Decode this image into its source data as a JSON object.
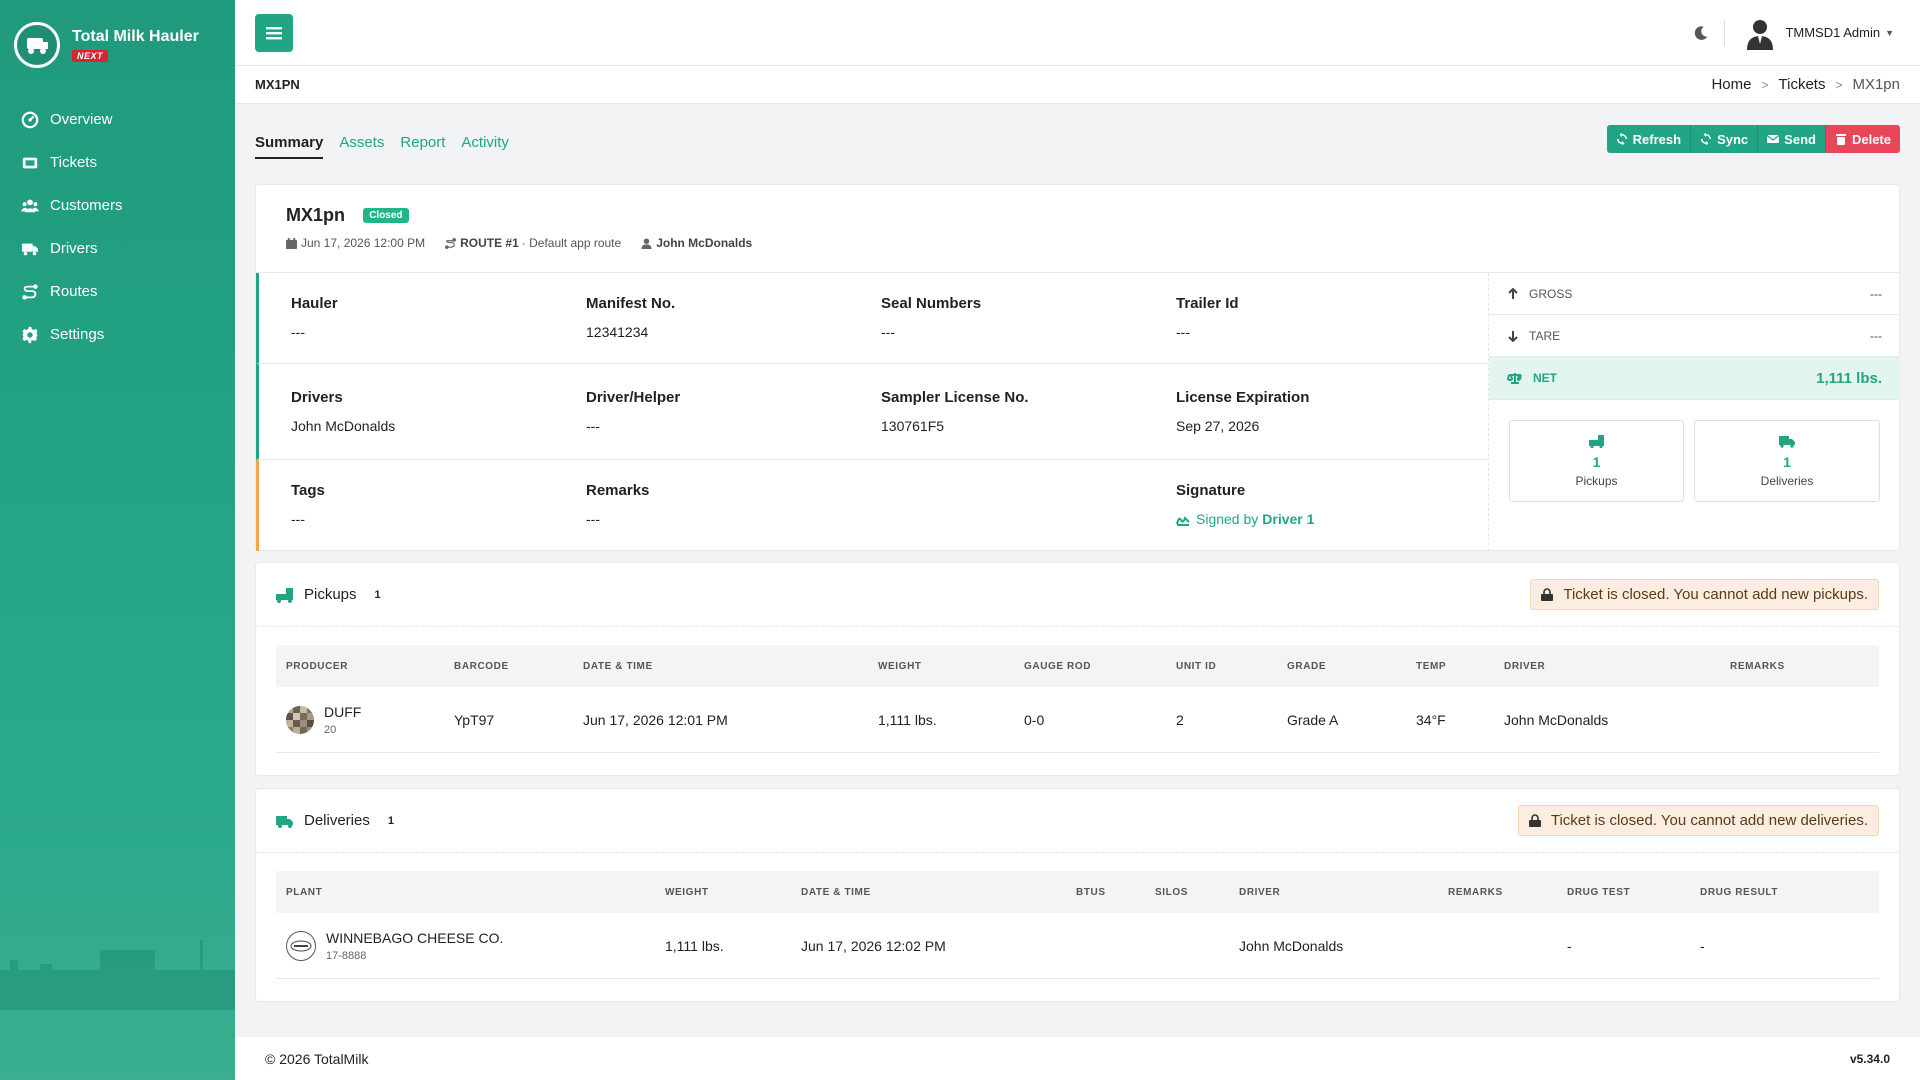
{
  "app": {
    "brand_title": "Total Milk Hauler",
    "brand_badge": "NEXT"
  },
  "sidebar": {
    "items": [
      {
        "label": "Overview",
        "icon": "dashboard-icon"
      },
      {
        "label": "Tickets",
        "icon": "ticket-icon"
      },
      {
        "label": "Customers",
        "icon": "users-icon"
      },
      {
        "label": "Drivers",
        "icon": "truck-icon"
      },
      {
        "label": "Routes",
        "icon": "route-icon"
      },
      {
        "label": "Settings",
        "icon": "gear-icon"
      }
    ]
  },
  "header": {
    "user_name": "TMMSD1 Admin"
  },
  "subheader": {
    "title": "MX1PN",
    "breadcrumbs": [
      "Home",
      "Tickets",
      "MX1pn"
    ]
  },
  "tabs": [
    "Summary",
    "Assets",
    "Report",
    "Activity"
  ],
  "actions": {
    "refresh": "Refresh",
    "sync": "Sync",
    "send": "Send",
    "delete": "Delete"
  },
  "ticket": {
    "id": "MX1pn",
    "status": "Closed",
    "datetime": "Jun 17, 2026 12:00 PM",
    "route_code": "ROUTE #1",
    "route_desc": "· Default app route",
    "driver": "John McDonalds",
    "fields": {
      "hauler_label": "Hauler",
      "hauler": "---",
      "manifest_label": "Manifest No.",
      "manifest": "12341234",
      "seal_label": "Seal Numbers",
      "seal": "---",
      "trailer_label": "Trailer Id",
      "trailer": "---",
      "drivers_label": "Drivers",
      "drivers": "John McDonalds",
      "helper_label": "Driver/Helper",
      "helper": "---",
      "sampler_label": "Sampler License No.",
      "sampler": "130761F5",
      "license_exp_label": "License Expiration",
      "license_exp": "Sep 27, 2026",
      "tags_label": "Tags",
      "tags": "---",
      "remarks_label": "Remarks",
      "remarks": "---",
      "signature_label": "Signature",
      "signature_prefix": "Signed by",
      "signature_who": "Driver 1"
    },
    "weights": {
      "gross_label": "GROSS",
      "gross": "---",
      "tare_label": "TARE",
      "tare": "---",
      "net_label": "NET",
      "net": "1,111 lbs."
    },
    "counts": {
      "pickups_num": "1",
      "pickups_label": "Pickups",
      "deliveries_num": "1",
      "deliveries_label": "Deliveries"
    }
  },
  "pickups": {
    "title": "Pickups",
    "count": "1",
    "notice": "Ticket is closed. You cannot add new pickups.",
    "columns": [
      "PRODUCER",
      "BARCODE",
      "DATE & TIME",
      "WEIGHT",
      "GAUGE ROD",
      "UNIT ID",
      "GRADE",
      "TEMP",
      "DRIVER",
      "REMARKS"
    ],
    "rows": [
      {
        "producer": "DUFF",
        "producer_sub": "20",
        "barcode": "YpT97",
        "datetime": "Jun 17, 2026 12:01 PM",
        "weight": "1,111 lbs.",
        "gauge": "0-0",
        "unit": "2",
        "grade": "Grade A",
        "temp": "34°F",
        "driver": "John McDonalds",
        "remarks": ""
      }
    ]
  },
  "deliveries": {
    "title": "Deliveries",
    "count": "1",
    "notice": "Ticket is closed. You cannot add new deliveries.",
    "columns": [
      "PLANT",
      "WEIGHT",
      "DATE & TIME",
      "BTUS",
      "SILOS",
      "DRIVER",
      "REMARKS",
      "DRUG TEST",
      "DRUG RESULT"
    ],
    "rows": [
      {
        "plant": "WINNEBAGO CHEESE CO.",
        "plant_sub": "17-8888",
        "weight": "1,111 lbs.",
        "datetime": "Jun 17, 2026 12:02 PM",
        "btus": "",
        "silos": "",
        "driver": "John McDonalds",
        "remarks": "",
        "drug_test": "-",
        "drug_result": "-"
      }
    ]
  },
  "footer": {
    "copyright": "© 2026 TotalMilk",
    "version": "v5.34.0"
  },
  "colors": {
    "accent": "#22a584",
    "danger": "#e8475a",
    "warning_border": "#f2a54a"
  }
}
